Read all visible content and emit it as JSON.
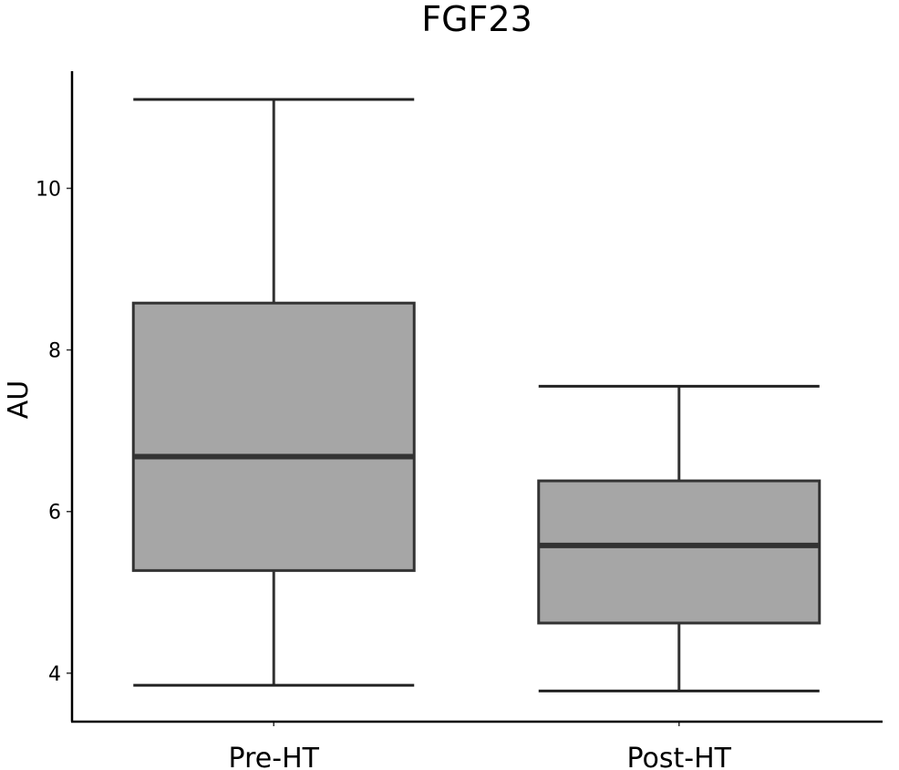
{
  "chart_data": {
    "type": "boxplot",
    "title": "FGF23",
    "xlabel": "",
    "ylabel": "AU",
    "ylim": [
      3.4,
      11.45
    ],
    "yticks": [
      4,
      6,
      8,
      10
    ],
    "categories": [
      "Pre-HT",
      "Post-HT"
    ],
    "boxes": [
      {
        "category": "Pre-HT",
        "min": 3.85,
        "q1": 5.27,
        "median": 6.68,
        "q3": 8.58,
        "max": 11.1
      },
      {
        "category": "Post-HT",
        "min": 3.78,
        "q1": 4.62,
        "median": 5.58,
        "q3": 6.38,
        "max": 7.55
      }
    ],
    "colors": {
      "box_fill": "#a6a6a6",
      "box_stroke": "#333333",
      "axis": "#000000"
    },
    "grid": false
  }
}
